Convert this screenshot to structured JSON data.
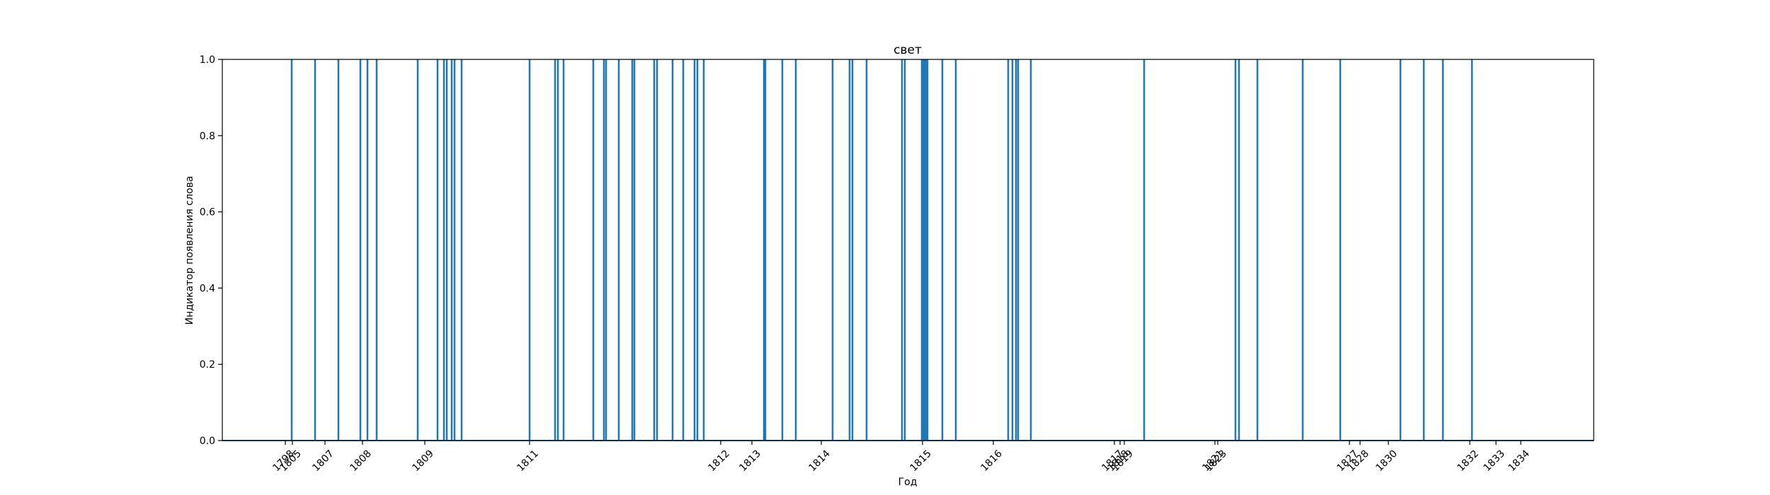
{
  "chart_data": {
    "type": "bar",
    "title": "свет",
    "xlabel": "Год",
    "ylabel": "Индикатор появления слова",
    "ylim": [
      0,
      1.0
    ],
    "y_ticks": [
      "0.0",
      "0.2",
      "0.4",
      "0.6",
      "0.8",
      "1.0"
    ],
    "x_ticks": [
      "1798",
      "1805",
      "1807",
      "1808",
      "1809",
      "1811",
      "1812",
      "1813",
      "1814",
      "1815",
      "1816",
      "1817",
      "1818",
      "1819",
      "1821",
      "1823",
      "1827",
      "1828",
      "1830",
      "1832",
      "1833",
      "1834"
    ],
    "grid": false,
    "color": "#1f77b4",
    "values": [
      1.0,
      1.0,
      1.0,
      1.0,
      1.0,
      1.0,
      1.0,
      1.0,
      1.0,
      1.0,
      1.0,
      1.0,
      1.0,
      1.0,
      1.0,
      1.0,
      1.0,
      1.0,
      1.0,
      1.0,
      1.0,
      1.0,
      1.0,
      1.0,
      1.0,
      1.0,
      1.0,
      1.0,
      1.0,
      1.0,
      1.0,
      1.0,
      1.0,
      1.0,
      1.0,
      1.0,
      1.0,
      1.0,
      1.0,
      1.0,
      1.0,
      1.0,
      1.0,
      1.0,
      1.0,
      1.0,
      1.0,
      1.0,
      1.0,
      1.0,
      1.0,
      1.0,
      1.0,
      1.0,
      1.0,
      1.0,
      1.0,
      1.0,
      1.0,
      1.0,
      1.0,
      1.0
    ]
  }
}
